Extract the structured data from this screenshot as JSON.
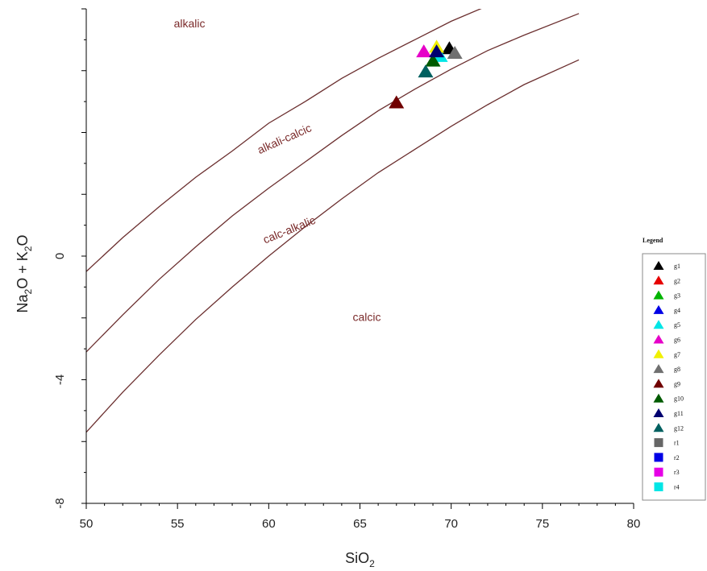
{
  "chart_data": {
    "type": "scatter",
    "xlabel": "SiO",
    "xlabel_sub": "2",
    "ylabel_parts": [
      "Na",
      "2",
      "O + K",
      "2",
      "O"
    ],
    "xlim": [
      50,
      80
    ],
    "ylim": [
      -8,
      8
    ],
    "x_ticks": [
      50,
      55,
      60,
      65,
      70,
      75,
      80
    ],
    "y_ticks": [
      -8,
      -4,
      0
    ],
    "y_tick_labels": [
      "-8",
      "-4",
      "0"
    ],
    "boundary_curves": [
      {
        "x": [
          50,
          52,
          54,
          56,
          58,
          60,
          62,
          64,
          66,
          68,
          70,
          72,
          74,
          77
        ],
        "y": [
          -0.5,
          0.6,
          1.6,
          2.55,
          3.4,
          4.3,
          5.0,
          5.75,
          6.4,
          7.0,
          7.6,
          8.1,
          8.6,
          9.1
        ]
      },
      {
        "x": [
          50,
          52,
          54,
          56,
          58,
          60,
          62,
          64,
          66,
          68,
          70,
          72,
          74,
          77
        ],
        "y": [
          -3.1,
          -1.9,
          -0.75,
          0.3,
          1.3,
          2.2,
          3.05,
          3.9,
          4.7,
          5.4,
          6.05,
          6.65,
          7.15,
          7.85
        ]
      },
      {
        "x": [
          50,
          52,
          54,
          56,
          58,
          60,
          62,
          64,
          66,
          68,
          70,
          72,
          74,
          77
        ],
        "y": [
          -5.7,
          -4.4,
          -3.2,
          -2.05,
          -1.0,
          0.0,
          0.95,
          1.85,
          2.7,
          3.45,
          4.2,
          4.9,
          5.55,
          6.35
        ]
      }
    ],
    "region_labels": [
      {
        "text": "alkalic",
        "x": 54.8,
        "y": 7.4,
        "angle": 0
      },
      {
        "text": "alkali-calcic",
        "x": 59.5,
        "y": 3.3,
        "angle": -24
      },
      {
        "text": "calc-alkalic",
        "x": 59.8,
        "y": 0.4,
        "angle": -22
      },
      {
        "text": "calcic",
        "x": 64.6,
        "y": -2.1,
        "angle": 0
      }
    ],
    "series": [
      {
        "name": "g1",
        "marker": "triangle",
        "color": "#000000",
        "x": 69.9,
        "y": 6.7
      },
      {
        "name": "g2",
        "marker": "triangle",
        "color": "#e60000",
        "x": null,
        "y": null
      },
      {
        "name": "g3",
        "marker": "triangle",
        "color": "#00b400",
        "x": null,
        "y": null
      },
      {
        "name": "g4",
        "marker": "triangle",
        "color": "#0000e6",
        "x": null,
        "y": null
      },
      {
        "name": "g5",
        "marker": "triangle",
        "color": "#00e6e6",
        "x": 69.4,
        "y": 6.45
      },
      {
        "name": "g6",
        "marker": "triangle",
        "color": "#e600c8",
        "x": 68.5,
        "y": 6.6
      },
      {
        "name": "g7",
        "marker": "triangle",
        "color": "#f0f000",
        "x": 69.2,
        "y": 6.75
      },
      {
        "name": "g8",
        "marker": "triangle",
        "color": "#707070",
        "x": 70.2,
        "y": 6.55
      },
      {
        "name": "g9",
        "marker": "triangle",
        "color": "#700000",
        "x": 67.0,
        "y": 4.95
      },
      {
        "name": "g10",
        "marker": "triangle",
        "color": "#005a00",
        "x": 69.0,
        "y": 6.3
      },
      {
        "name": "g11",
        "marker": "triangle",
        "color": "#000070",
        "x": 69.2,
        "y": 6.6
      },
      {
        "name": "g12",
        "marker": "triangle",
        "color": "#006060",
        "x": 68.6,
        "y": 5.95
      },
      {
        "name": "r1",
        "marker": "square",
        "color": "#666666",
        "x": null,
        "y": null
      },
      {
        "name": "r2",
        "marker": "square",
        "color": "#0000e6",
        "x": null,
        "y": null
      },
      {
        "name": "r3",
        "marker": "square",
        "color": "#e600e6",
        "x": null,
        "y": null
      },
      {
        "name": "r4",
        "marker": "square",
        "color": "#00e6e6",
        "x": null,
        "y": null
      }
    ],
    "legend": {
      "title": "Legend",
      "placement": "right"
    },
    "line_color": "#6b2f2f",
    "grid": false
  }
}
